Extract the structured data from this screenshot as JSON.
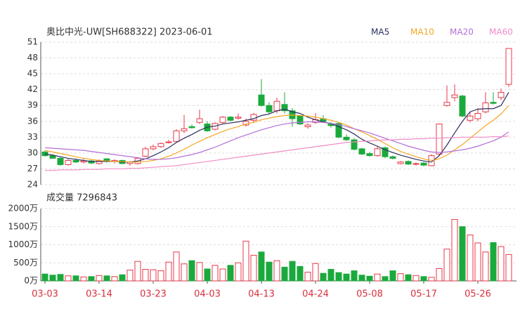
{
  "chart_data": [
    {
      "type": "candlestick",
      "title": "奥比中光-UW[SH688322] 2023-06-01",
      "up_color": "#e8384a",
      "down_color": "#1aaa3c",
      "open": [
        30.2,
        29.5,
        29.0,
        27.8,
        28.6,
        28.3,
        28.5,
        28.0,
        28.9,
        28.4,
        28.6,
        28.0,
        28.0,
        29.4,
        30.8,
        31.2,
        32.0,
        32.2,
        34.2,
        35.0,
        35.8,
        35.5,
        34.5,
        35.8,
        36.8,
        36.6,
        35.3,
        36.2,
        41.0,
        39.0,
        38.0,
        39.2,
        38.0,
        37.0,
        35.0,
        35.8,
        36.5,
        35.5,
        35.6,
        33.0,
        32.5,
        30.8,
        29.9,
        29.5,
        31.0,
        29.3,
        28.0,
        28.4,
        27.9,
        28.1,
        27.6,
        29.8,
        39.0,
        40.5,
        40.8,
        36.2,
        36.5,
        37.8,
        39.6,
        40.5,
        43.0
      ],
      "high": [
        30.5,
        29.8,
        29.2,
        28.9,
        29.0,
        28.9,
        28.7,
        28.8,
        29.0,
        28.8,
        28.7,
        28.5,
        29.2,
        31.2,
        31.6,
        32.0,
        32.5,
        34.5,
        37.2,
        35.4,
        38.2,
        36.0,
        35.8,
        37.0,
        37.0,
        37.5,
        36.5,
        37.6,
        44.0,
        39.6,
        40.5,
        41.5,
        38.5,
        37.2,
        35.6,
        37.6,
        37.2,
        35.9,
        35.8,
        33.5,
        32.8,
        31.0,
        30.2,
        31.2,
        31.2,
        29.5,
        28.5,
        28.6,
        28.2,
        28.3,
        29.8,
        35.6,
        42.8,
        43.0,
        41.0,
        37.8,
        38.5,
        41.5,
        41.5,
        42.2,
        49.8
      ],
      "low": [
        29.3,
        28.9,
        27.6,
        27.6,
        28.1,
        28.0,
        27.9,
        27.8,
        28.2,
        28.0,
        27.9,
        27.6,
        27.8,
        29.2,
        30.5,
        31.0,
        31.8,
        32.0,
        33.8,
        34.6,
        35.5,
        34.0,
        34.3,
        35.5,
        36.0,
        36.3,
        35.0,
        35.8,
        38.8,
        37.5,
        37.5,
        37.5,
        35.0,
        35.3,
        34.6,
        35.5,
        35.8,
        34.8,
        32.8,
        32.3,
        30.5,
        29.6,
        29.3,
        29.3,
        29.0,
        28.8,
        27.8,
        27.7,
        27.6,
        27.5,
        27.5,
        29.5,
        38.8,
        39.8,
        36.8,
        35.8,
        36.0,
        37.5,
        39.2,
        40.0,
        42.5
      ],
      "close": [
        29.5,
        29.0,
        27.8,
        28.6,
        28.3,
        28.5,
        28.1,
        28.5,
        28.4,
        28.6,
        28.0,
        28.3,
        29.0,
        30.8,
        31.2,
        31.8,
        32.1,
        34.2,
        34.6,
        34.8,
        36.5,
        34.2,
        35.6,
        36.8,
        36.2,
        36.8,
        36.0,
        37.3,
        39.0,
        37.8,
        39.8,
        38.0,
        36.5,
        35.5,
        35.3,
        36.3,
        36.0,
        35.2,
        33.0,
        32.5,
        30.7,
        29.8,
        29.5,
        30.8,
        29.3,
        29.0,
        28.3,
        27.9,
        28.0,
        27.7,
        29.5,
        35.5,
        39.6,
        41.0,
        37.0,
        37.0,
        37.5,
        39.5,
        39.4,
        41.5,
        49.8
      ],
      "series": [
        {
          "name": "MA5",
          "color": "#2b2f5e",
          "values": [
            29.8,
            29.6,
            29.3,
            29.0,
            28.8,
            28.6,
            28.4,
            28.4,
            28.4,
            28.4,
            28.3,
            28.3,
            28.5,
            28.9,
            29.5,
            30.2,
            31.0,
            32.0,
            32.8,
            33.5,
            34.3,
            34.9,
            35.1,
            35.5,
            35.7,
            35.9,
            36.2,
            36.5,
            37.1,
            37.4,
            38.0,
            38.3,
            37.8,
            37.5,
            36.8,
            36.3,
            35.9,
            35.6,
            35.0,
            34.4,
            33.6,
            32.6,
            31.9,
            31.3,
            30.6,
            30.1,
            29.6,
            29.2,
            28.8,
            28.5,
            28.3,
            29.5,
            31.5,
            33.8,
            36.0,
            37.8,
            38.3,
            38.4,
            38.4,
            39.0,
            41.5
          ]
        },
        {
          "name": "MA10",
          "color": "#f5a623",
          "values": [
            30.5,
            30.2,
            29.9,
            29.6,
            29.3,
            29.0,
            28.8,
            28.6,
            28.5,
            28.4,
            28.4,
            28.3,
            28.3,
            28.4,
            28.6,
            28.9,
            29.4,
            30.0,
            30.7,
            31.5,
            32.2,
            32.9,
            33.5,
            34.1,
            34.6,
            35.0,
            35.5,
            35.8,
            36.3,
            36.6,
            36.9,
            37.1,
            37.2,
            37.1,
            37.0,
            36.8,
            36.5,
            36.2,
            35.8,
            35.3,
            34.6,
            34.0,
            33.3,
            32.6,
            31.8,
            31.0,
            30.3,
            29.8,
            29.3,
            28.9,
            28.6,
            28.9,
            29.6,
            30.6,
            31.6,
            32.8,
            34.0,
            35.2,
            36.2,
            37.4,
            39.0
          ]
        },
        {
          "name": "MA20",
          "color": "#b36fd8",
          "values": [
            31.0,
            30.9,
            30.8,
            30.7,
            30.6,
            30.5,
            30.3,
            30.1,
            29.9,
            29.7,
            29.5,
            29.3,
            29.1,
            28.9,
            28.8,
            28.8,
            28.9,
            29.1,
            29.4,
            29.7,
            30.1,
            30.6,
            31.1,
            31.7,
            32.3,
            32.9,
            33.4,
            33.9,
            34.4,
            34.8,
            35.2,
            35.5,
            35.7,
            35.8,
            35.9,
            35.9,
            35.8,
            35.6,
            35.4,
            35.0,
            34.6,
            34.2,
            33.8,
            33.3,
            32.8,
            32.3,
            31.8,
            31.3,
            30.9,
            30.5,
            30.2,
            30.1,
            30.2,
            30.4,
            30.6,
            30.9,
            31.3,
            31.8,
            32.3,
            33.0,
            34.0
          ]
        },
        {
          "name": "MA60",
          "color": "#f28cc6",
          "values": [
            26.7,
            26.7,
            26.8,
            26.8,
            26.8,
            26.9,
            26.9,
            26.9,
            27.0,
            27.0,
            27.0,
            27.1,
            27.1,
            27.2,
            27.3,
            27.4,
            27.5,
            27.6,
            27.8,
            28.0,
            28.2,
            28.4,
            28.6,
            28.8,
            29.0,
            29.2,
            29.4,
            29.6,
            29.8,
            30.0,
            30.2,
            30.4,
            30.6,
            30.8,
            31.0,
            31.2,
            31.4,
            31.6,
            31.8,
            32.0,
            32.1,
            32.2,
            32.3,
            32.4,
            32.5,
            32.5,
            32.6,
            32.6,
            32.7,
            32.7,
            32.8,
            32.8,
            32.9,
            32.9,
            33.0,
            33.0,
            33.0,
            33.0,
            33.1,
            33.1,
            33.2
          ]
        }
      ],
      "ylim": [
        24,
        51
      ],
      "yticks": [
        24,
        27,
        30,
        33,
        36,
        39,
        42,
        45,
        48,
        51
      ],
      "grid": true
    },
    {
      "type": "bar",
      "title": "成交量 7296843",
      "categories": [
        "03-03",
        null,
        null,
        null,
        null,
        null,
        null,
        "03-14",
        null,
        null,
        null,
        null,
        null,
        null,
        "03-23",
        null,
        null,
        null,
        null,
        null,
        null,
        "04-03",
        null,
        null,
        null,
        null,
        null,
        null,
        "04-13",
        null,
        null,
        null,
        null,
        null,
        null,
        "04-24",
        null,
        null,
        null,
        null,
        null,
        null,
        "05-08",
        null,
        null,
        null,
        null,
        null,
        null,
        "05-17",
        null,
        null,
        null,
        null,
        null,
        null,
        "05-26",
        null,
        null,
        null,
        null
      ],
      "values": [
        190,
        160,
        180,
        140,
        140,
        110,
        120,
        150,
        140,
        120,
        170,
        300,
        540,
        320,
        310,
        280,
        520,
        800,
        470,
        560,
        510,
        330,
        430,
        330,
        430,
        500,
        1100,
        710,
        800,
        520,
        560,
        380,
        540,
        400,
        240,
        480,
        210,
        320,
        230,
        190,
        280,
        160,
        130,
        190,
        120,
        280,
        200,
        170,
        150,
        120,
        100,
        340,
        880,
        1700,
        1500,
        1270,
        1050,
        800,
        1060,
        950,
        729.6843
      ],
      "ylim": [
        0,
        2000
      ],
      "yticks": [
        {
          "value": 0,
          "label": "0万"
        },
        {
          "value": 500,
          "label": "500万"
        },
        {
          "value": 1000,
          "label": "1000万"
        },
        {
          "value": 1500,
          "label": "1500万"
        },
        {
          "value": 2000,
          "label": "2000万"
        }
      ],
      "grid": true
    }
  ]
}
